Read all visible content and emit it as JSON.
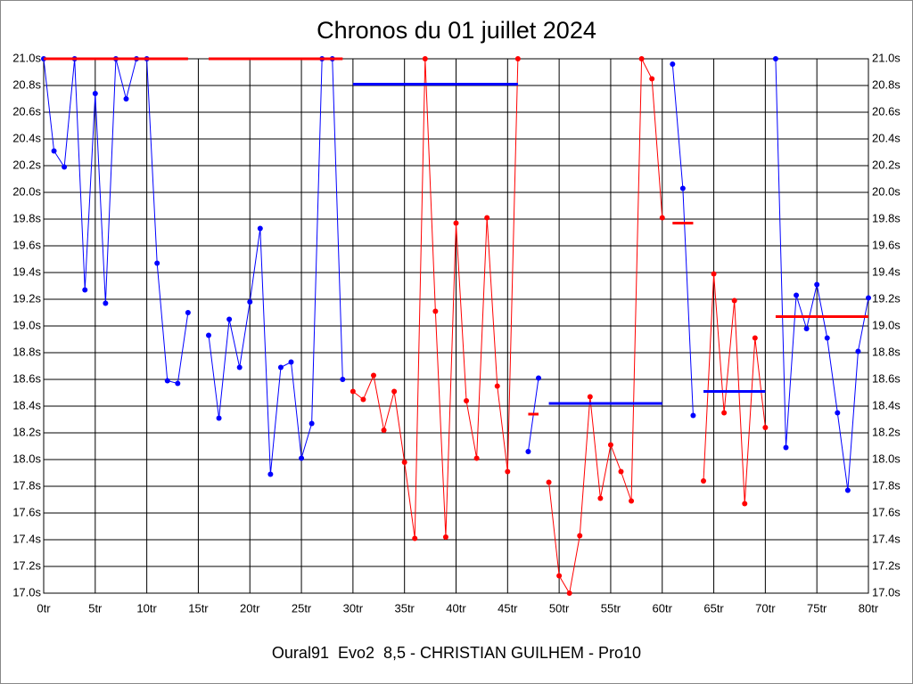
{
  "chart_data": {
    "type": "line",
    "title": "Chronos du 01 juillet 2024",
    "footer": "Oural91  Evo2  8,5 - CHRISTIAN GUILHEM - Pro10",
    "x": [
      0,
      1,
      2,
      3,
      4,
      5,
      6,
      7,
      8,
      9,
      10,
      11,
      12,
      13,
      14,
      15,
      16,
      17,
      18,
      19,
      20,
      21,
      22,
      23,
      24,
      25,
      26,
      27,
      28,
      29,
      30,
      31,
      32,
      33,
      34,
      35,
      36,
      37,
      38,
      39,
      40,
      41,
      42,
      43,
      44,
      45,
      46,
      47,
      48,
      49,
      50,
      51,
      52,
      53,
      54,
      55,
      56,
      57,
      58,
      59,
      60,
      61,
      62,
      63,
      64,
      65,
      66,
      67,
      68,
      69,
      70,
      71,
      72,
      73,
      74,
      75,
      76,
      77,
      78,
      79,
      80
    ],
    "xlim": [
      0,
      80
    ],
    "xticks": [
      {
        "value": 0,
        "label": "0tr"
      },
      {
        "value": 5,
        "label": "5tr"
      },
      {
        "value": 10,
        "label": "10tr"
      },
      {
        "value": 15,
        "label": "15tr"
      },
      {
        "value": 20,
        "label": "20tr"
      },
      {
        "value": 25,
        "label": "25tr"
      },
      {
        "value": 30,
        "label": "30tr"
      },
      {
        "value": 35,
        "label": "35tr"
      },
      {
        "value": 40,
        "label": "40tr"
      },
      {
        "value": 45,
        "label": "45tr"
      },
      {
        "value": 50,
        "label": "50tr"
      },
      {
        "value": 55,
        "label": "55tr"
      },
      {
        "value": 60,
        "label": "60tr"
      },
      {
        "value": 65,
        "label": "65tr"
      },
      {
        "value": 70,
        "label": "70tr"
      },
      {
        "value": 75,
        "label": "75tr"
      },
      {
        "value": 80,
        "label": "80tr"
      }
    ],
    "ylim": [
      17,
      21
    ],
    "yticks": [
      {
        "value": 17,
        "label": "17.0s"
      },
      {
        "value": 17.2,
        "label": "17.2s"
      },
      {
        "value": 17.4,
        "label": "17.4s"
      },
      {
        "value": 17.6,
        "label": "17.6s"
      },
      {
        "value": 17.8,
        "label": "17.8s"
      },
      {
        "value": 18,
        "label": "18.0s"
      },
      {
        "value": 18.2,
        "label": "18.2s"
      },
      {
        "value": 18.4,
        "label": "18.4s"
      },
      {
        "value": 18.6,
        "label": "18.6s"
      },
      {
        "value": 18.8,
        "label": "18.8s"
      },
      {
        "value": 19,
        "label": "19.0s"
      },
      {
        "value": 19.2,
        "label": "19.2s"
      },
      {
        "value": 19.4,
        "label": "19.4s"
      },
      {
        "value": 19.6,
        "label": "19.6s"
      },
      {
        "value": 19.8,
        "label": "19.8s"
      },
      {
        "value": 20,
        "label": "20.0s"
      },
      {
        "value": 20.2,
        "label": "20.2s"
      },
      {
        "value": 20.4,
        "label": "20.4s"
      },
      {
        "value": 20.6,
        "label": "20.6s"
      },
      {
        "value": 20.8,
        "label": "20.8s"
      },
      {
        "value": 21,
        "label": "21.0s"
      }
    ],
    "grid": true,
    "series": [
      {
        "color": "#0000ff",
        "values": [
          21,
          20.31,
          20.19,
          21,
          19.27,
          20.74,
          19.17,
          21,
          20.7,
          21,
          21,
          19.47,
          18.59,
          18.57,
          19.1,
          null,
          18.93,
          18.31,
          19.05,
          18.69,
          19.18,
          19.73,
          17.89,
          18.69,
          18.73,
          18.01,
          18.27,
          21,
          21,
          18.6,
          null,
          null,
          null,
          null,
          null,
          null,
          null,
          null,
          null,
          null,
          null,
          null,
          null,
          null,
          null,
          null,
          null,
          18.06,
          18.61,
          null,
          null,
          null,
          null,
          null,
          null,
          null,
          null,
          null,
          null,
          null,
          null,
          20.96,
          20.03,
          18.33,
          null,
          null,
          null,
          null,
          null,
          null,
          null,
          21,
          18.09,
          19.23,
          18.98,
          19.31,
          18.91,
          18.35,
          17.77,
          18.81,
          19.21
        ],
        "averages": [
          {
            "start": 30,
            "end": 46,
            "value": 20.81
          },
          {
            "start": 49,
            "end": 60,
            "value": 18.42
          },
          {
            "start": 64,
            "end": 70,
            "value": 18.51
          }
        ]
      },
      {
        "color": "#ff0000",
        "values": [
          null,
          null,
          null,
          null,
          null,
          null,
          null,
          null,
          null,
          null,
          null,
          null,
          null,
          null,
          null,
          null,
          null,
          null,
          null,
          null,
          null,
          null,
          null,
          null,
          null,
          null,
          null,
          null,
          null,
          null,
          18.51,
          18.45,
          18.63,
          18.22,
          18.51,
          17.98,
          17.41,
          21,
          19.11,
          17.42,
          19.77,
          18.44,
          18.01,
          19.81,
          18.55,
          17.91,
          21,
          null,
          null,
          17.83,
          17.13,
          17,
          17.43,
          18.47,
          17.71,
          18.11,
          17.91,
          17.69,
          21,
          20.85,
          19.81,
          null,
          null,
          null,
          17.84,
          19.39,
          18.35,
          19.19,
          17.67,
          18.91,
          18.24,
          null,
          null,
          null,
          null,
          null,
          null,
          null,
          null,
          null,
          null
        ],
        "averages": [
          {
            "start": 0,
            "end": 14,
            "value": 21
          },
          {
            "start": 16,
            "end": 29,
            "value": 21
          },
          {
            "start": 47,
            "end": 48,
            "value": 18.34
          },
          {
            "start": 61,
            "end": 63,
            "value": 19.77
          },
          {
            "start": 71,
            "end": 80,
            "value": 19.07
          }
        ]
      }
    ]
  }
}
